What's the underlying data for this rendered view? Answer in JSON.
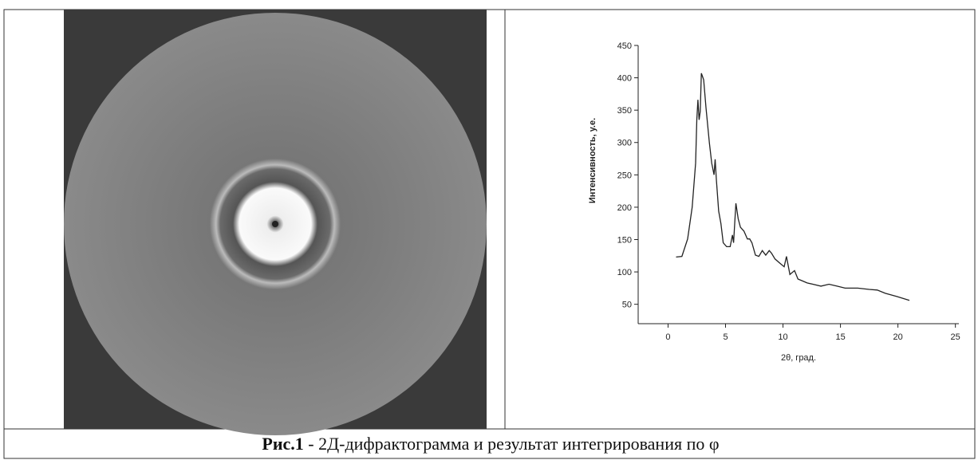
{
  "caption": {
    "label": "Рис.1",
    "text": " - 2Д-дифрактограмма и результат интегрирования по φ"
  },
  "chart_data": {
    "type": "line",
    "x_label": "2θ, град.",
    "y_label": "Интенсивность, у.е.",
    "x": [
      0.7,
      1.2,
      1.7,
      2.1,
      2.4,
      2.5,
      2.6,
      2.7,
      2.8,
      2.9,
      3.1,
      3.3,
      3.6,
      3.8,
      4.0,
      4.1,
      4.2,
      4.4,
      4.6,
      4.8,
      5.1,
      5.4,
      5.6,
      5.7,
      5.9,
      6.1,
      6.3,
      6.6,
      6.9,
      7.1,
      7.3,
      7.6,
      7.9,
      8.2,
      8.5,
      8.8,
      9.0,
      9.3,
      9.7,
      10.1,
      10.3,
      10.6,
      11.0,
      11.3,
      11.7,
      12.1,
      12.6,
      13.3,
      14.0,
      14.7,
      15.4,
      16.5,
      17.5,
      18.2,
      18.9,
      19.9,
      21.0
    ],
    "values": [
      123,
      124,
      151,
      200,
      268,
      335,
      366,
      335,
      348,
      407,
      397,
      354,
      299,
      268,
      250,
      274,
      243,
      194,
      175,
      145,
      139,
      139,
      157,
      145,
      206,
      182,
      169,
      163,
      151,
      151,
      145,
      126,
      124,
      133,
      126,
      133,
      129,
      120,
      114,
      108,
      124,
      96,
      102,
      89,
      86,
      83,
      81,
      78,
      81,
      78,
      75,
      75,
      73,
      72,
      67,
      62,
      56
    ],
    "color": "#222222",
    "xlim": [
      -2.6,
      25.3
    ],
    "xticks": [
      0,
      5,
      10,
      15,
      20,
      25
    ],
    "ylim": [
      20,
      450
    ],
    "yticks": [
      50,
      100,
      150,
      200,
      250,
      300,
      350,
      400,
      450
    ]
  }
}
